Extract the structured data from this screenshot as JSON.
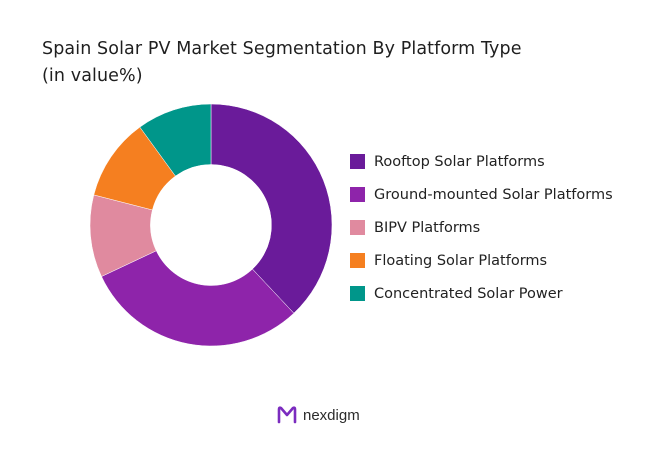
{
  "chart_data": {
    "type": "pie",
    "title": "Spain Solar PV Market Segmentation By Platform Type",
    "subtitle": "(in value%)",
    "hole_ratio": 0.5,
    "legend_position": "right",
    "categories": [
      "Rooftop Solar Platforms",
      "Ground-mounted Solar Platforms",
      "BIPV Platforms",
      "Floating Solar Platforms",
      "Concentrated Solar Power"
    ],
    "values": [
      38,
      30,
      11,
      11,
      10
    ],
    "colors": [
      "#6a1b9a",
      "#8e24aa",
      "#e08a9f",
      "#f57f20",
      "#00968a"
    ]
  },
  "brand": {
    "name": "nexdigm",
    "logo_color": "#7b2cbf"
  }
}
